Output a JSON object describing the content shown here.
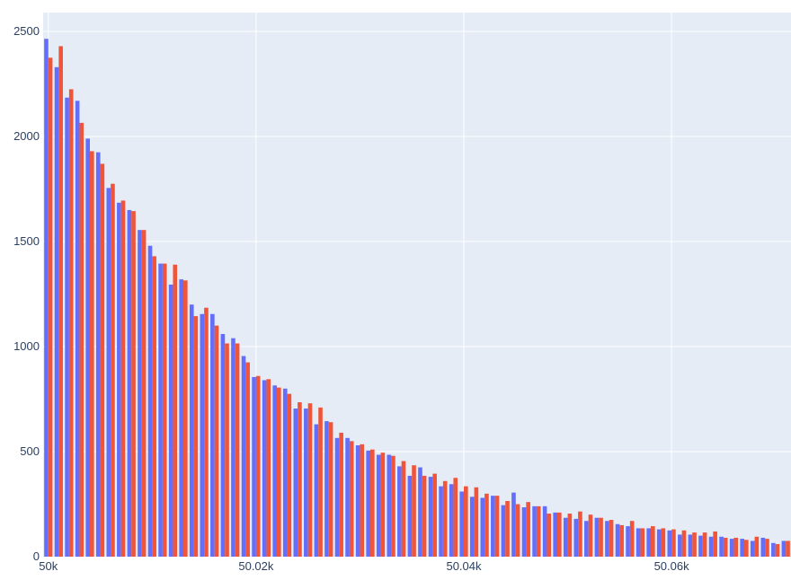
{
  "chart_data": {
    "type": "bar",
    "title": "",
    "xlabel": "",
    "ylabel": "",
    "bin_width": 1,
    "xlim": [
      49999.5,
      50071.5
    ],
    "ylim": [
      0,
      2590
    ],
    "x_ticks": [
      {
        "value": 50000,
        "label": "50k"
      },
      {
        "value": 50020,
        "label": "50.02k"
      },
      {
        "value": 50040,
        "label": "50.04k"
      },
      {
        "value": 50060,
        "label": "50.06k"
      }
    ],
    "y_ticks": [
      {
        "value": 0,
        "label": "0"
      },
      {
        "value": 500,
        "label": "500"
      },
      {
        "value": 1000,
        "label": "1000"
      },
      {
        "value": 1500,
        "label": "1500"
      },
      {
        "value": 2000,
        "label": "2000"
      },
      {
        "value": 2500,
        "label": "2500"
      }
    ],
    "grid": true,
    "legend": "none",
    "colors": {
      "plot_bg": "#e5ecf6",
      "grid": "#ffffff",
      "series_a": "#636efa",
      "series_b": "#ef553b"
    },
    "x_start": 50000,
    "series": [
      {
        "values": [
          2465,
          2330,
          2185,
          2170,
          1990,
          1925,
          1755,
          1685,
          1650,
          1555,
          1480,
          1395,
          1295,
          1320,
          1200,
          1155,
          1155,
          1060,
          1040,
          955,
          855,
          840,
          815,
          800,
          705,
          705,
          630,
          645,
          565,
          565,
          530,
          505,
          485,
          485,
          430,
          385,
          425,
          380,
          335,
          345,
          310,
          285,
          280,
          290,
          245,
          305,
          235,
          240,
          240,
          210,
          185,
          180,
          170,
          185,
          170,
          155,
          145,
          135,
          135,
          130,
          125,
          105,
          105,
          100,
          95,
          95,
          85,
          85,
          75,
          90,
          65,
          75
        ]
      },
      {
        "values": [
          2375,
          2430,
          2225,
          2065,
          1930,
          1870,
          1775,
          1695,
          1645,
          1555,
          1430,
          1395,
          1390,
          1315,
          1145,
          1185,
          1100,
          1015,
          1015,
          925,
          860,
          845,
          805,
          775,
          735,
          730,
          710,
          640,
          590,
          550,
          535,
          510,
          495,
          480,
          455,
          435,
          385,
          395,
          360,
          375,
          335,
          330,
          300,
          290,
          265,
          250,
          260,
          240,
          205,
          210,
          205,
          215,
          200,
          185,
          175,
          150,
          170,
          135,
          145,
          135,
          130,
          125,
          115,
          115,
          120,
          90,
          90,
          80,
          95,
          85,
          60,
          75
        ]
      }
    ]
  }
}
